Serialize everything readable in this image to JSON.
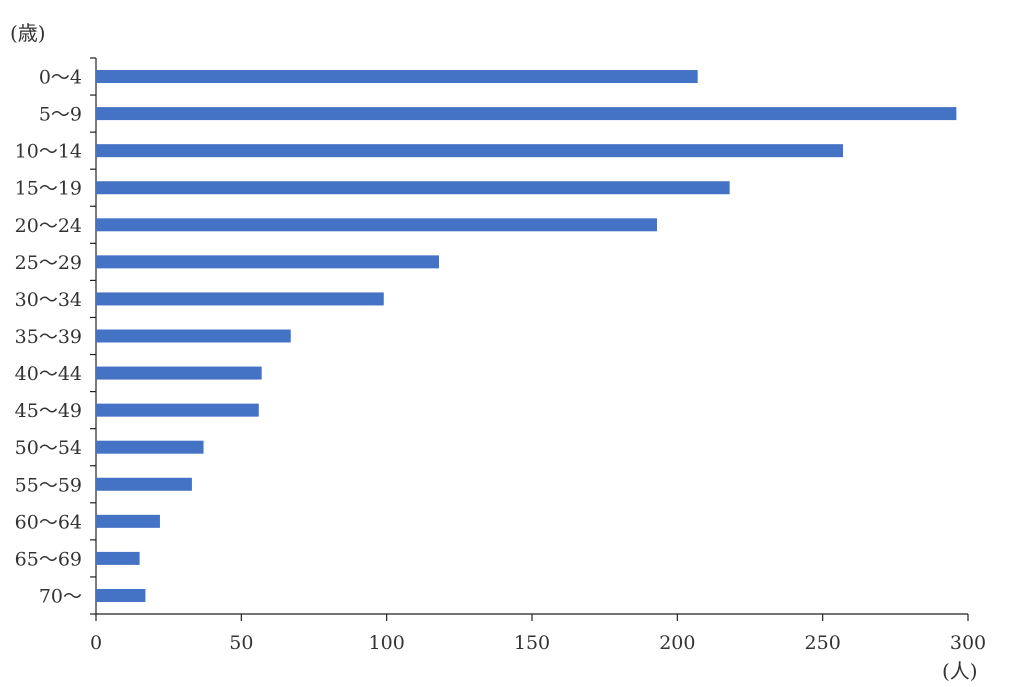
{
  "chart_data": {
    "type": "bar",
    "orientation": "horizontal",
    "y_unit_label": "(歳)",
    "x_unit_label": "(人)",
    "categories": [
      "0～4",
      "5～9",
      "10～14",
      "15～19",
      "20～24",
      "25～29",
      "30～34",
      "35～39",
      "40～44",
      "45～49",
      "50～54",
      "55～59",
      "60～64",
      "65～69",
      "70～"
    ],
    "values": [
      207,
      296,
      257,
      218,
      193,
      118,
      99,
      67,
      57,
      56,
      37,
      33,
      22,
      15,
      17
    ],
    "xlim": [
      0,
      300
    ],
    "xticks": [
      "0",
      "50",
      "100",
      "150",
      "200",
      "250",
      "300"
    ],
    "bar_color": "#4472C4",
    "grid": false
  }
}
